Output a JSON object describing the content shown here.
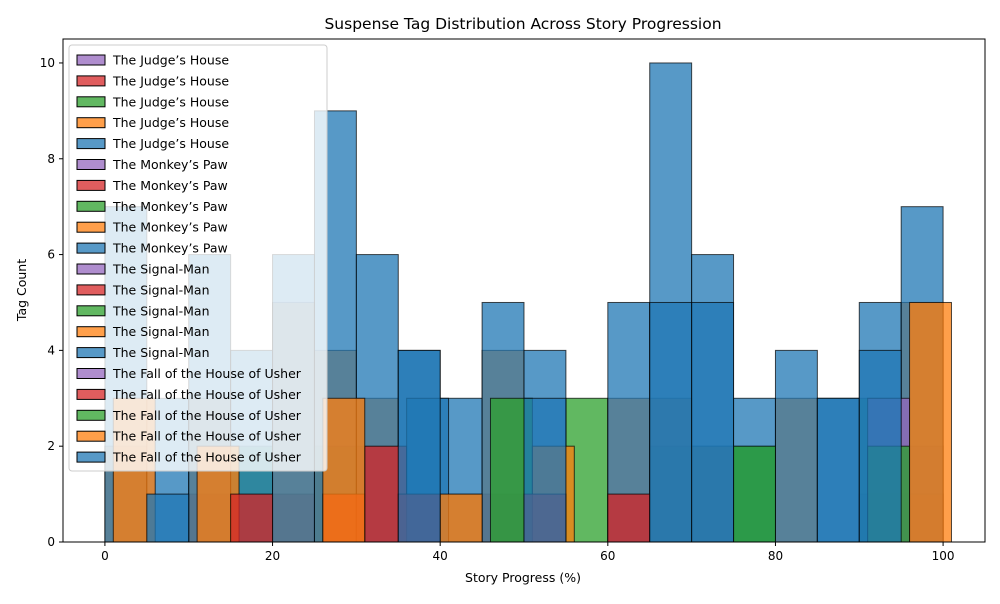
{
  "chart_data": {
    "type": "histogram",
    "title": "Suspense Tag Distribution Across Story Progression",
    "xlabel": "Story Progress (%)",
    "ylabel": "Tag Count",
    "xlim": [
      -5,
      105
    ],
    "ylim": [
      0,
      10.5
    ],
    "xticks": [
      0,
      20,
      40,
      60,
      80,
      100
    ],
    "yticks": [
      0,
      2,
      4,
      6,
      8,
      10
    ],
    "grid": false,
    "legend_position": "upper-left",
    "colors": {
      "blue": "#1f77b4",
      "orange": "#ff7f0e",
      "green": "#2ca02c",
      "red": "#d62728",
      "purple": "#9467bd"
    },
    "series": [
      {
        "name": "The Judge’s House",
        "color": "#9467bd",
        "bins": [
          0,
          5,
          10,
          15,
          20,
          25,
          30,
          35,
          40,
          45,
          50,
          55,
          60,
          65,
          70,
          75,
          80,
          85,
          90,
          95
        ],
        "values": [
          0,
          0,
          0,
          0,
          0,
          0,
          0,
          0,
          0,
          0,
          0,
          0,
          0,
          0,
          0,
          0,
          0,
          0,
          1,
          2
        ]
      },
      {
        "name": "The Judge’s House",
        "color": "#d62728",
        "bins": [
          0,
          5,
          10,
          15,
          20,
          25,
          30,
          35,
          40,
          45,
          50,
          55,
          60,
          65,
          70,
          75,
          80,
          85,
          90,
          95
        ],
        "values": [
          0,
          0,
          1,
          1,
          1,
          0,
          2,
          1,
          0,
          1,
          1,
          0,
          1,
          0,
          0,
          0,
          0,
          0,
          0,
          1
        ]
      },
      {
        "name": "The Judge’s House",
        "color": "#2ca02c",
        "bins": [
          0,
          5,
          10,
          15,
          20,
          25,
          30,
          35,
          40,
          45,
          50,
          55,
          60,
          65,
          70,
          75,
          80,
          85,
          90,
          95
        ],
        "values": [
          0,
          0,
          0,
          2,
          0,
          2,
          0,
          0,
          0,
          0,
          0,
          3,
          0,
          2,
          2,
          2,
          0,
          0,
          3,
          0
        ]
      },
      {
        "name": "The Judge’s House",
        "color": "#ff7f0e",
        "bins": [
          0,
          5,
          10,
          15,
          20,
          25,
          30,
          35,
          40,
          45,
          50,
          55,
          60,
          65,
          70,
          75,
          80,
          85,
          90,
          95
        ],
        "values": [
          2,
          0,
          3,
          0,
          5,
          4,
          3,
          0,
          1,
          4,
          0,
          0,
          3,
          3,
          2,
          0,
          3,
          0,
          0,
          5
        ]
      },
      {
        "name": "The Judge’s House",
        "color": "#1f77b4",
        "bins": [
          0,
          5,
          10,
          15,
          20,
          25,
          30,
          35,
          40,
          45,
          50,
          55,
          60,
          65,
          70,
          75,
          80,
          85,
          90,
          95
        ],
        "values": [
          7,
          3,
          6,
          4,
          6,
          9,
          6,
          4,
          3,
          5,
          4,
          0,
          5,
          10,
          6,
          3,
          4,
          3,
          5,
          7
        ]
      },
      {
        "name": "The Monkey’s Paw",
        "color": "#9467bd",
        "bins": [
          1,
          6,
          11,
          16,
          21,
          26,
          31,
          36,
          41,
          46,
          51,
          56,
          61,
          66,
          71,
          76,
          81,
          86,
          91,
          96
        ],
        "values": [
          0,
          0,
          0,
          0,
          0,
          0,
          0,
          0,
          0,
          0,
          0,
          0,
          0,
          0,
          0,
          0,
          0,
          0,
          3,
          0
        ]
      },
      {
        "name": "The Monkey’s Paw",
        "color": "#d62728",
        "bins": [
          1,
          6,
          11,
          16,
          21,
          26,
          31,
          36,
          41,
          46,
          51,
          56,
          61,
          66,
          71,
          76,
          81,
          86,
          91,
          96
        ],
        "values": [
          0,
          0,
          0,
          0,
          0,
          1,
          2,
          0,
          0,
          0,
          0,
          0,
          0,
          0,
          0,
          0,
          0,
          0,
          0,
          0
        ]
      },
      {
        "name": "The Monkey’s Paw",
        "color": "#2ca02c",
        "bins": [
          1,
          6,
          11,
          16,
          21,
          26,
          31,
          36,
          41,
          46,
          51,
          56,
          61,
          66,
          71,
          76,
          81,
          86,
          91,
          96
        ],
        "values": [
          0,
          0,
          0,
          0,
          0,
          0,
          0,
          0,
          0,
          3,
          0,
          0,
          0,
          0,
          0,
          0,
          0,
          0,
          2,
          0
        ]
      },
      {
        "name": "The Monkey’s Paw",
        "color": "#ff7f0e",
        "bins": [
          1,
          6,
          11,
          16,
          21,
          26,
          31,
          36,
          41,
          46,
          51,
          56,
          61,
          66,
          71,
          76,
          81,
          86,
          91,
          96
        ],
        "values": [
          3,
          0,
          2,
          0,
          0,
          3,
          0,
          0,
          0,
          0,
          2,
          0,
          0,
          0,
          0,
          0,
          0,
          0,
          0,
          5
        ]
      },
      {
        "name": "The Monkey’s Paw",
        "color": "#1f77b4",
        "bins": [
          1,
          6,
          11,
          16,
          21,
          26,
          31,
          36,
          41,
          46,
          51,
          56,
          61,
          66,
          71,
          76,
          81,
          86,
          91,
          96
        ],
        "values": [
          0,
          0,
          0,
          0,
          0,
          0,
          0,
          3,
          0,
          0,
          0,
          0,
          0,
          0,
          0,
          0,
          0,
          0,
          0,
          0
        ]
      },
      {
        "name": "The Signal-Man",
        "color": "#9467bd",
        "bins": [
          5,
          10,
          15,
          20,
          25,
          30,
          35,
          40,
          45,
          50,
          55,
          60,
          65,
          70,
          75,
          80,
          85,
          90,
          95
        ],
        "values": [
          0,
          0,
          0,
          0,
          0,
          0,
          0,
          0,
          0,
          0,
          0,
          0,
          0,
          0,
          0,
          0,
          0,
          0,
          0
        ]
      },
      {
        "name": "The Signal-Man",
        "color": "#d62728",
        "bins": [
          5,
          10,
          15,
          20,
          25,
          30,
          35,
          40,
          45,
          50,
          55,
          60,
          65,
          70,
          75,
          80,
          85,
          90,
          95
        ],
        "values": [
          0,
          0,
          1,
          0,
          0,
          0,
          1,
          0,
          0,
          1,
          0,
          1,
          0,
          0,
          0,
          0,
          0,
          0,
          0
        ]
      },
      {
        "name": "The Signal-Man",
        "color": "#2ca02c",
        "bins": [
          5,
          10,
          15,
          20,
          25,
          30,
          35,
          40,
          45,
          50,
          55,
          60,
          65,
          70,
          75,
          80,
          85,
          90,
          95
        ],
        "values": [
          0,
          0,
          0,
          0,
          0,
          0,
          0,
          0,
          0,
          0,
          0,
          0,
          0,
          0,
          2,
          0,
          0,
          0,
          0
        ]
      },
      {
        "name": "The Signal-Man",
        "color": "#ff7f0e",
        "bins": [
          5,
          10,
          15,
          20,
          25,
          30,
          35,
          40,
          45,
          50,
          55,
          60,
          65,
          70,
          75,
          80,
          85,
          90,
          95
        ],
        "values": [
          0,
          0,
          0,
          0,
          0,
          0,
          0,
          1,
          0,
          0,
          0,
          0,
          0,
          0,
          0,
          0,
          0,
          0,
          0
        ]
      },
      {
        "name": "The Signal-Man",
        "color": "#1f77b4",
        "bins": [
          5,
          10,
          15,
          20,
          25,
          30,
          35,
          40,
          45,
          50,
          55,
          60,
          65,
          70,
          75,
          80,
          85,
          90,
          95
        ],
        "values": [
          1,
          0,
          0,
          0,
          0,
          0,
          4,
          0,
          0,
          3,
          0,
          0,
          5,
          5,
          0,
          0,
          3,
          4,
          0
        ]
      },
      {
        "name": "The Fall of the House of Usher",
        "color": "#9467bd",
        "bins": [
          0,
          5,
          10,
          15,
          20,
          25,
          30,
          35,
          40,
          45,
          50,
          55,
          60,
          65,
          70,
          75,
          80,
          85,
          90,
          95
        ],
        "values": [
          0,
          0,
          0,
          0,
          0,
          0,
          0,
          0,
          0,
          0,
          0,
          0,
          0,
          0,
          0,
          0,
          0,
          0,
          0,
          0
        ]
      },
      {
        "name": "The Fall of the House of Usher",
        "color": "#d62728",
        "bins": [
          0,
          5,
          10,
          15,
          20,
          25,
          30,
          35,
          40,
          45,
          50,
          55,
          60,
          65,
          70,
          75,
          80,
          85,
          90,
          95
        ],
        "values": [
          0,
          0,
          0,
          0,
          0,
          0,
          0,
          0,
          0,
          0,
          0,
          0,
          0,
          0,
          0,
          0,
          0,
          0,
          0,
          0
        ]
      },
      {
        "name": "The Fall of the House of Usher",
        "color": "#2ca02c",
        "bins": [
          0,
          5,
          10,
          15,
          20,
          25,
          30,
          35,
          40,
          45,
          50,
          55,
          60,
          65,
          70,
          75,
          80,
          85,
          90,
          95
        ],
        "values": [
          0,
          0,
          0,
          0,
          0,
          0,
          0,
          0,
          0,
          0,
          0,
          0,
          0,
          0,
          0,
          0,
          0,
          0,
          0,
          0
        ]
      },
      {
        "name": "The Fall of the House of Usher",
        "color": "#ff7f0e",
        "bins": [
          0,
          5,
          10,
          15,
          20,
          25,
          30,
          35,
          40,
          45,
          50,
          55,
          60,
          65,
          70,
          75,
          80,
          85,
          90,
          95
        ],
        "values": [
          0,
          0,
          0,
          0,
          0,
          0,
          0,
          0,
          0,
          0,
          0,
          0,
          0,
          0,
          0,
          0,
          0,
          0,
          0,
          0
        ]
      },
      {
        "name": "The Fall of the House of Usher",
        "color": "#1f77b4",
        "bins": [
          0,
          5,
          10,
          15,
          20,
          25,
          30,
          35,
          40,
          45,
          50,
          55,
          60,
          65,
          70,
          75,
          80,
          85,
          90,
          95
        ],
        "values": [
          0,
          0,
          0,
          0,
          0,
          0,
          0,
          0,
          0,
          0,
          0,
          0,
          0,
          0,
          0,
          0,
          0,
          0,
          0,
          0
        ]
      }
    ]
  }
}
